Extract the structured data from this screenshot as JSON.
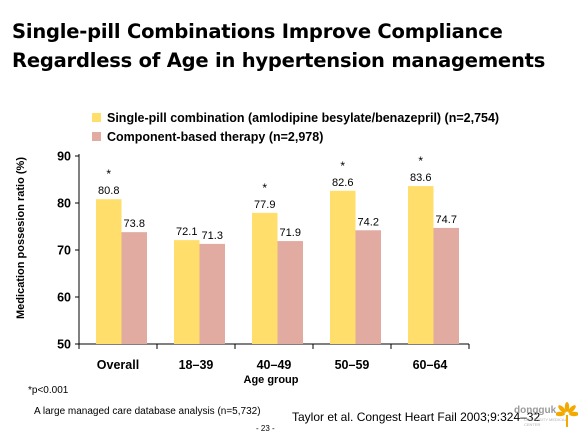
{
  "slide": {
    "title": "Single-pill Combinations Improve Compliance Regardless of Age in hypertension managements",
    "footnote": "*p<0.001",
    "source_note": "A large managed care database analysis (n=5,732)",
    "citation": "Taylor et al. Congest Heart Fail 2003;9:324–32",
    "page_number": "- 23 -",
    "logo": {
      "text": "dongguk",
      "subtext": "UNIVERSITY MEDICAL CENTER",
      "icon": "flower-icon"
    }
  },
  "chart_data": {
    "type": "bar",
    "categories": [
      "Overall",
      "18–39",
      "40–49",
      "50–59",
      "60–64"
    ],
    "series": [
      {
        "name": "Single-pill combination (amlodipine besylate/benazepril) (n=2,754)",
        "color": "#FFDE6B",
        "values": [
          80.8,
          72.1,
          77.9,
          82.6,
          83.6
        ],
        "labels": [
          "80.8",
          "72.1",
          "77.9",
          "82.6",
          "83.6"
        ]
      },
      {
        "name": "Component-based therapy (n=2,978)",
        "color": "#E2ABA2",
        "values": [
          73.8,
          71.3,
          71.9,
          74.2,
          74.7
        ],
        "labels": [
          "73.8",
          "71.3",
          "71.9",
          "74.2",
          "74.7"
        ]
      }
    ],
    "significance": [
      "*",
      "",
      "*",
      "*",
      "*"
    ],
    "xlabel": "Age group",
    "ylabel": "Medication possesion ratio (%)",
    "ylim": [
      50,
      90
    ],
    "yticks": [
      50,
      60,
      70,
      80,
      90
    ],
    "ytick_labels": [
      "50",
      "60",
      "70",
      "80",
      "90"
    ],
    "grid": false,
    "legend": "top"
  }
}
